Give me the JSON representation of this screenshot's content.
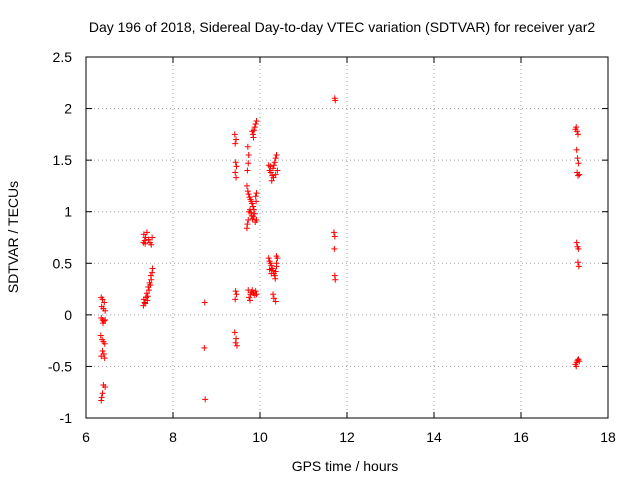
{
  "chart_data": {
    "type": "scatter",
    "title": "Day 196 of 2018, Sidereal Day-to-day VTEC variation (SDTVAR) for receiver yar2",
    "xlabel": "GPS time / hours",
    "ylabel": "SDTVAR / TECUs",
    "xlim": [
      6,
      18
    ],
    "ylim": [
      -1,
      2.5
    ],
    "xticks": [
      6,
      8,
      10,
      12,
      14,
      16,
      18
    ],
    "xtick_labels": [
      "6",
      "8",
      "10",
      "12",
      "14",
      "16",
      "18"
    ],
    "yticks": [
      -1,
      -0.5,
      0,
      0.5,
      1,
      1.5,
      2,
      2.5
    ],
    "ytick_labels": [
      "-1",
      "-0.5",
      "0",
      "0.5",
      "1",
      "1.5",
      "2",
      "2.5"
    ],
    "grid": true,
    "marker": "+",
    "color": "#ff0000",
    "series": [
      {
        "name": "SDTVAR",
        "points": [
          [
            6.35,
            0.17
          ],
          [
            6.38,
            0.15
          ],
          [
            6.42,
            0.12
          ],
          [
            6.36,
            0.08
          ],
          [
            6.4,
            0.06
          ],
          [
            6.44,
            0.04
          ],
          [
            6.35,
            -0.03
          ],
          [
            6.38,
            -0.05
          ],
          [
            6.41,
            -0.06
          ],
          [
            6.44,
            -0.05
          ],
          [
            6.39,
            -0.08
          ],
          [
            6.34,
            -0.2
          ],
          [
            6.37,
            -0.24
          ],
          [
            6.4,
            -0.26
          ],
          [
            6.43,
            -0.28
          ],
          [
            6.38,
            -0.35
          ],
          [
            6.41,
            -0.38
          ],
          [
            6.35,
            -0.4
          ],
          [
            6.43,
            -0.42
          ],
          [
            6.4,
            -0.68
          ],
          [
            6.44,
            -0.7
          ],
          [
            6.38,
            -0.76
          ],
          [
            6.36,
            -0.8
          ],
          [
            6.35,
            -0.83
          ],
          [
            7.32,
            0.09
          ],
          [
            7.35,
            0.12
          ],
          [
            7.33,
            0.15
          ],
          [
            7.38,
            0.17
          ],
          [
            7.42,
            0.18
          ],
          [
            7.4,
            0.21
          ],
          [
            7.45,
            0.24
          ],
          [
            7.43,
            0.27
          ],
          [
            7.48,
            0.29
          ],
          [
            7.46,
            0.31
          ],
          [
            7.5,
            0.34
          ],
          [
            7.49,
            0.38
          ],
          [
            7.52,
            0.41
          ],
          [
            7.53,
            0.45
          ],
          [
            7.36,
            0.11
          ],
          [
            7.41,
            0.14
          ],
          [
            7.32,
            0.7
          ],
          [
            7.35,
            0.72
          ],
          [
            7.37,
            0.75
          ],
          [
            7.33,
            0.78
          ],
          [
            7.4,
            0.8
          ],
          [
            7.44,
            0.73
          ],
          [
            7.47,
            0.7
          ],
          [
            7.5,
            0.68
          ],
          [
            7.52,
            0.75
          ],
          [
            7.36,
            0.69
          ],
          [
            8.73,
            0.12
          ],
          [
            8.72,
            -0.32
          ],
          [
            8.74,
            -0.82
          ],
          [
            9.42,
            1.75
          ],
          [
            9.45,
            1.7
          ],
          [
            9.43,
            1.66
          ],
          [
            9.44,
            1.48
          ],
          [
            9.46,
            1.44
          ],
          [
            9.43,
            1.38
          ],
          [
            9.45,
            1.33
          ],
          [
            9.44,
            0.23
          ],
          [
            9.46,
            0.2
          ],
          [
            9.43,
            0.15
          ],
          [
            9.42,
            -0.17
          ],
          [
            9.45,
            -0.23
          ],
          [
            9.44,
            -0.27
          ],
          [
            9.47,
            -0.3
          ],
          [
            9.72,
            1.63
          ],
          [
            9.74,
            1.55
          ],
          [
            9.73,
            1.47
          ],
          [
            9.71,
            1.4
          ],
          [
            9.7,
            1.25
          ],
          [
            9.72,
            1.2
          ],
          [
            9.74,
            1.17
          ],
          [
            9.76,
            1.14
          ],
          [
            9.78,
            1.12
          ],
          [
            9.8,
            1.1
          ],
          [
            9.82,
            1.08
          ],
          [
            9.84,
            1.05
          ],
          [
            9.86,
            1.02
          ],
          [
            9.88,
            0.98
          ],
          [
            9.85,
            0.95
          ],
          [
            9.83,
            0.93
          ],
          [
            9.81,
            0.96
          ],
          [
            9.79,
            0.99
          ],
          [
            9.77,
            1.02
          ],
          [
            9.75,
            1.0
          ],
          [
            9.73,
            0.92
          ],
          [
            9.71,
            0.88
          ],
          [
            9.7,
            0.84
          ],
          [
            9.9,
            1.15
          ],
          [
            9.92,
            1.18
          ],
          [
            9.91,
            1.1
          ],
          [
            9.89,
            0.9
          ],
          [
            9.92,
            0.92
          ],
          [
            9.82,
            1.78
          ],
          [
            9.84,
            1.75
          ],
          [
            9.86,
            1.79
          ],
          [
            9.88,
            1.82
          ],
          [
            9.9,
            1.85
          ],
          [
            9.92,
            1.88
          ],
          [
            9.85,
            1.72
          ],
          [
            9.75,
            0.17
          ],
          [
            9.78,
            0.2
          ],
          [
            9.8,
            0.22
          ],
          [
            9.82,
            0.24
          ],
          [
            9.85,
            0.21
          ],
          [
            9.88,
            0.19
          ],
          [
            9.9,
            0.23
          ],
          [
            9.92,
            0.2
          ],
          [
            9.77,
            0.14
          ],
          [
            9.73,
            0.24
          ],
          [
            10.2,
            1.45
          ],
          [
            10.22,
            1.4
          ],
          [
            10.25,
            1.38
          ],
          [
            10.28,
            1.35
          ],
          [
            10.3,
            1.42
          ],
          [
            10.32,
            1.45
          ],
          [
            10.34,
            1.48
          ],
          [
            10.36,
            1.52
          ],
          [
            10.38,
            1.55
          ],
          [
            10.27,
            1.3
          ],
          [
            10.31,
            1.33
          ],
          [
            10.36,
            1.36
          ],
          [
            10.4,
            1.4
          ],
          [
            10.24,
            1.44
          ],
          [
            10.2,
            0.55
          ],
          [
            10.22,
            0.52
          ],
          [
            10.24,
            0.5
          ],
          [
            10.26,
            0.48
          ],
          [
            10.28,
            0.45
          ],
          [
            10.3,
            0.43
          ],
          [
            10.32,
            0.4
          ],
          [
            10.34,
            0.38
          ],
          [
            10.36,
            0.42
          ],
          [
            10.38,
            0.5
          ],
          [
            10.4,
            0.55
          ],
          [
            10.38,
            0.57
          ],
          [
            10.22,
            0.44
          ],
          [
            10.26,
            0.4
          ],
          [
            10.35,
            0.35
          ],
          [
            10.38,
            0.47
          ],
          [
            10.3,
            0.2
          ],
          [
            10.32,
            0.16
          ],
          [
            10.36,
            0.13
          ],
          [
            11.72,
            2.1
          ],
          [
            11.73,
            2.08
          ],
          [
            11.7,
            0.8
          ],
          [
            11.72,
            0.76
          ],
          [
            11.71,
            0.64
          ],
          [
            11.72,
            0.38
          ],
          [
            11.73,
            0.34
          ],
          [
            17.25,
            1.8
          ],
          [
            17.27,
            1.82
          ],
          [
            17.29,
            1.78
          ],
          [
            17.31,
            1.75
          ],
          [
            17.28,
            1.6
          ],
          [
            17.3,
            1.52
          ],
          [
            17.32,
            1.47
          ],
          [
            17.29,
            1.38
          ],
          [
            17.31,
            1.35
          ],
          [
            17.34,
            1.36
          ],
          [
            17.28,
            0.7
          ],
          [
            17.3,
            0.66
          ],
          [
            17.32,
            0.64
          ],
          [
            17.31,
            0.51
          ],
          [
            17.33,
            0.47
          ],
          [
            17.25,
            -0.48
          ],
          [
            17.28,
            -0.46
          ],
          [
            17.3,
            -0.44
          ],
          [
            17.32,
            -0.43
          ],
          [
            17.34,
            -0.45
          ],
          [
            17.27,
            -0.5
          ]
        ]
      }
    ]
  }
}
